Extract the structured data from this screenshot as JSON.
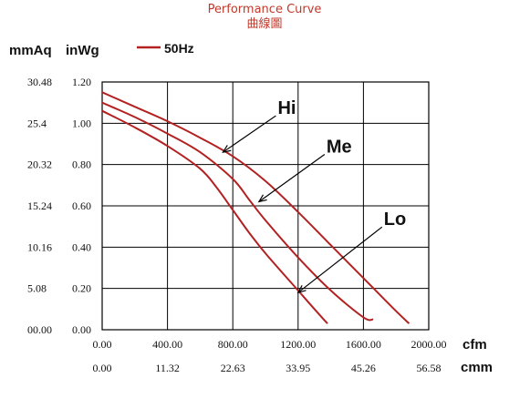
{
  "chart_data": {
    "type": "line",
    "title": "Performance Curve",
    "subtitle": "曲線圖",
    "ylabel_left": "mmAq",
    "ylabel_right": "inWg",
    "xlabel_top": "cfm",
    "xlabel_bottom": "cmm",
    "xlim": [
      0,
      2000
    ],
    "ylim": [
      0,
      1.2
    ],
    "x_ticks": [
      "0.00",
      "400.00",
      "800.00",
      "1200.00",
      "1600.00",
      "2000.00"
    ],
    "x_ticks_cmm": [
      "0.00",
      "11.32",
      "22.63",
      "33.95",
      "45.26",
      "56.58"
    ],
    "y_ticks_inwg": [
      "0.00",
      "0.20",
      "0.40",
      "0.60",
      "0.80",
      "1.00",
      "1.20"
    ],
    "y_ticks_mmaq": [
      "00.00",
      "5.08",
      "10.16",
      "15.24",
      "20.32",
      "25.4",
      "30.48"
    ],
    "grid": true,
    "legend": {
      "label": "50Hz",
      "position": "top-left",
      "color": "#b22222"
    },
    "series": [
      {
        "name": "Hi",
        "x": [
          0,
          200,
          400,
          600,
          800,
          1000,
          1200,
          1400,
          1600,
          1800,
          1880
        ],
        "y": [
          1.15,
          1.08,
          1.01,
          0.93,
          0.84,
          0.72,
          0.57,
          0.41,
          0.25,
          0.09,
          0.03
        ]
      },
      {
        "name": "Me",
        "x": [
          0,
          200,
          400,
          600,
          800,
          900,
          1000,
          1200,
          1400,
          1600,
          1660
        ],
        "y": [
          1.1,
          1.03,
          0.95,
          0.86,
          0.73,
          0.63,
          0.53,
          0.35,
          0.19,
          0.06,
          0.05
        ]
      },
      {
        "name": "Lo",
        "x": [
          0,
          200,
          400,
          600,
          700,
          800,
          900,
          1000,
          1200,
          1300,
          1380
        ],
        "y": [
          1.06,
          0.98,
          0.89,
          0.78,
          0.69,
          0.58,
          0.47,
          0.37,
          0.19,
          0.1,
          0.03
        ]
      }
    ],
    "annotations": [
      {
        "text": "Hi",
        "point": [
          740,
          0.86
        ]
      },
      {
        "text": "Me",
        "point": [
          960,
          0.62
        ]
      },
      {
        "text": "Lo",
        "point": [
          1200,
          0.18
        ]
      }
    ]
  }
}
